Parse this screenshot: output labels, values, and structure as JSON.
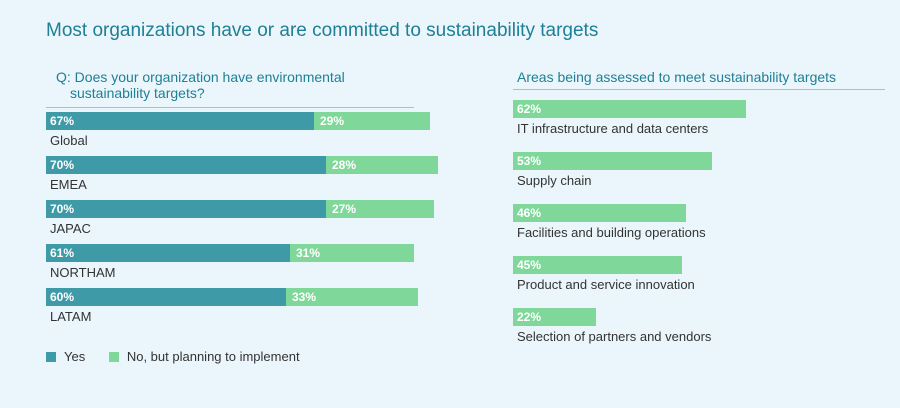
{
  "title": "Most organizations have or are committed to sustainability targets",
  "left_panel": {
    "question_line1": "Q: Does your organization have environmental",
    "question_line2": "sustainability targets?"
  },
  "right_panel": {
    "title": "Areas being assessed to meet sustainability targets"
  },
  "legend": {
    "yes": "Yes",
    "no": "No, but planning to implement"
  },
  "colors": {
    "yes": "#3e9aa6",
    "no": "#7fd89a",
    "accent": "#1f7f95"
  },
  "chart_data": [
    {
      "type": "bar",
      "orientation": "horizontal",
      "stacked": true,
      "categories": [
        "Global",
        "EMEA",
        "JAPAC",
        "NORTHAM",
        "LATAM"
      ],
      "series": [
        {
          "name": "Yes",
          "values": [
            67,
            70,
            70,
            61,
            60
          ],
          "labels": [
            "67%",
            "70%",
            "70%",
            "61%",
            "60%"
          ]
        },
        {
          "name": "No, but planning to implement",
          "values": [
            29,
            28,
            27,
            31,
            33
          ],
          "labels": [
            "29%",
            "28%",
            "27%",
            "31%",
            "33%"
          ]
        }
      ],
      "xlim": [
        0,
        100
      ]
    },
    {
      "type": "bar",
      "orientation": "horizontal",
      "categories": [
        "IT infrastructure and data centers",
        "Supply chain",
        "Facilities and building operations",
        "Product and service innovation",
        "Selection of partners and vendors"
      ],
      "values": [
        62,
        53,
        46,
        45,
        22
      ],
      "labels": [
        "62%",
        "53%",
        "46%",
        "45%",
        "22%"
      ],
      "xlim": [
        0,
        100
      ]
    }
  ]
}
